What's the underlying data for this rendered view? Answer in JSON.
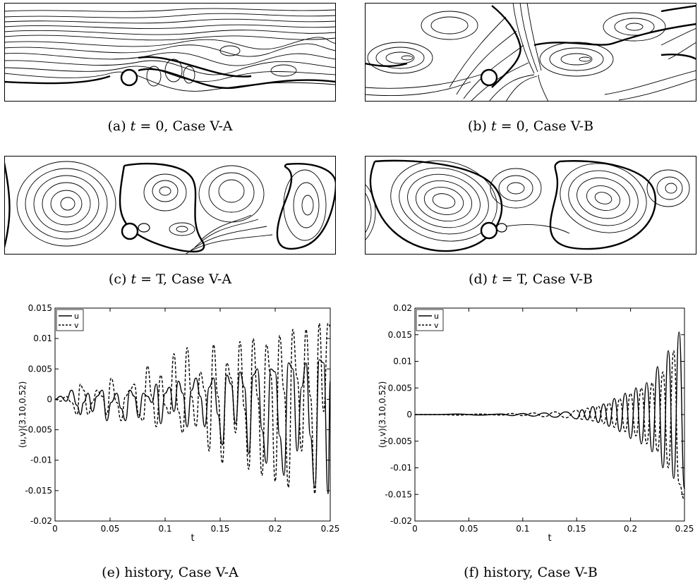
{
  "captions": {
    "a": {
      "label": "(a)",
      "var": "t",
      "eq": "= 0",
      "case": ", Case V-A"
    },
    "b": {
      "label": "(b)",
      "var": "t",
      "eq": "= 0",
      "case": ", Case V-B"
    },
    "c": {
      "label": "(c)",
      "var": "t",
      "eq": "= T",
      "case": ", Case V-A"
    },
    "d": {
      "label": "(d)",
      "var": "t",
      "eq": "= T",
      "case": ", Case V-B"
    },
    "e": "(e) history, Case V-A",
    "f": "(f) history, Case V-B"
  },
  "chart_data": [
    {
      "type": "line",
      "panel": "e",
      "title": "",
      "xlabel": "t",
      "ylabel": "(u,v)(3.10,0.52)",
      "xlim": [
        0,
        0.25
      ],
      "ylim": [
        -0.02,
        0.015
      ],
      "xticks": [
        "0",
        "0.05",
        "0.1",
        "0.15",
        "0.2",
        "0.25"
      ],
      "yticks": [
        "0.015",
        "0.01",
        "0.005",
        "0",
        "-0.005",
        "-0.01",
        "-0.015",
        "-0.02"
      ],
      "legend": {
        "position": "top-left",
        "entries": [
          "u",
          "v"
        ]
      },
      "series": [
        {
          "name": "u",
          "style": "solid",
          "x": [
            0,
            0.005,
            0.01,
            0.015,
            0.02,
            0.023,
            0.026,
            0.03,
            0.034,
            0.038,
            0.043,
            0.047,
            0.051,
            0.056,
            0.06,
            0.064,
            0.068,
            0.072,
            0.076,
            0.08,
            0.084,
            0.088,
            0.092,
            0.096,
            0.1,
            0.104,
            0.108,
            0.112,
            0.116,
            0.12,
            0.124,
            0.128,
            0.132,
            0.136,
            0.14,
            0.144,
            0.148,
            0.152,
            0.156,
            0.16,
            0.164,
            0.168,
            0.172,
            0.176,
            0.18,
            0.184,
            0.188,
            0.192,
            0.196,
            0.2,
            0.204,
            0.208,
            0.212,
            0.216,
            0.22,
            0.224,
            0.228,
            0.232,
            0.236,
            0.24,
            0.244,
            0.248,
            0.25
          ],
          "y": [
            0,
            0.0005,
            -0.0003,
            0.0015,
            -0.001,
            -0.0025,
            -0.0005,
            0.001,
            -0.002,
            0.0005,
            0.0015,
            -0.0035,
            -0.0005,
            0.001,
            -0.0015,
            -0.0035,
            0.0015,
            0.0005,
            -0.003,
            0.001,
            0.0005,
            -0.0005,
            0.0025,
            -0.004,
            0.001,
            0.002,
            -0.002,
            0.003,
            0.001,
            -0.0045,
            0.0015,
            0.0035,
            0.0005,
            -0.0045,
            0.002,
            0.0035,
            -0.0025,
            -0.0075,
            0.004,
            0.0025,
            -0.004,
            0.0045,
            0.002,
            -0.009,
            0.004,
            0.005,
            -0.005,
            -0.0105,
            0.005,
            0.0045,
            -0.006,
            -0.0125,
            0.006,
            0.005,
            -0.0085,
            0.002,
            0.006,
            -0.006,
            -0.0145,
            0.0065,
            0.006,
            -0.0155,
            0.003
          ]
        },
        {
          "name": "v",
          "style": "dashed",
          "x": [
            0,
            0.005,
            0.01,
            0.015,
            0.02,
            0.023,
            0.026,
            0.03,
            0.034,
            0.038,
            0.043,
            0.047,
            0.051,
            0.056,
            0.06,
            0.064,
            0.068,
            0.072,
            0.076,
            0.08,
            0.084,
            0.088,
            0.092,
            0.096,
            0.1,
            0.104,
            0.108,
            0.112,
            0.116,
            0.12,
            0.124,
            0.128,
            0.132,
            0.136,
            0.14,
            0.144,
            0.148,
            0.152,
            0.156,
            0.16,
            0.164,
            0.168,
            0.172,
            0.176,
            0.18,
            0.184,
            0.188,
            0.192,
            0.196,
            0.2,
            0.204,
            0.208,
            0.212,
            0.216,
            0.22,
            0.224,
            0.228,
            0.232,
            0.236,
            0.24,
            0.244,
            0.248,
            0.25
          ],
          "y": [
            0,
            -0.0003,
            0.0005,
            -0.0005,
            -0.0025,
            0.0025,
            0.0015,
            -0.0025,
            -0.0005,
            0.0015,
            0.0005,
            -0.0025,
            0.0035,
            -0.0005,
            -0.0035,
            0.0005,
            0.0015,
            0.0025,
            -0.0025,
            -0.0035,
            0.0055,
            0.0005,
            -0.0045,
            0.004,
            -0.001,
            -0.0025,
            0.0075,
            -0.002,
            -0.0055,
            0.0085,
            0.0005,
            -0.0045,
            0.0045,
            0.0015,
            -0.0085,
            0.009,
            0.0005,
            -0.0105,
            0.006,
            0.0035,
            -0.0055,
            0.0095,
            -0.0015,
            -0.0115,
            0.01,
            0.0005,
            -0.0125,
            0.009,
            0.004,
            -0.0135,
            0.0105,
            0.0015,
            -0.0145,
            0.0115,
            0.0035,
            -0.0085,
            0.0115,
            0.0005,
            -0.0155,
            0.0125,
            -0.002,
            0.0125,
            0.012
          ]
        }
      ]
    },
    {
      "type": "line",
      "panel": "f",
      "title": "",
      "xlabel": "t",
      "ylabel": "(u,v)(3.10,0.52)",
      "xlim": [
        0,
        0.25
      ],
      "ylim": [
        -0.02,
        0.02
      ],
      "xticks": [
        "0",
        "0.05",
        "0.1",
        "0.15",
        "0.2",
        "0.25"
      ],
      "yticks": [
        "0.02",
        "0.015",
        "0.01",
        "0.005",
        "0",
        "-0.005",
        "-0.01",
        "-0.015",
        "-0.02"
      ],
      "legend": {
        "position": "top-left",
        "entries": [
          "u",
          "v"
        ]
      },
      "series": [
        {
          "name": "u",
          "style": "solid",
          "x": [
            0,
            0.02,
            0.04,
            0.06,
            0.08,
            0.09,
            0.1,
            0.11,
            0.12,
            0.13,
            0.14,
            0.15,
            0.155,
            0.16,
            0.165,
            0.17,
            0.175,
            0.18,
            0.185,
            0.19,
            0.195,
            0.2,
            0.205,
            0.21,
            0.215,
            0.22,
            0.225,
            0.23,
            0.235,
            0.24,
            0.245,
            0.25
          ],
          "y": [
            0,
            0,
            0.0001,
            -0.0001,
            0.0001,
            -0.0002,
            0.0002,
            -0.0003,
            0.0003,
            -0.0005,
            0.0005,
            -0.0008,
            0.0009,
            -0.001,
            0.0015,
            -0.0015,
            0.002,
            -0.0022,
            0.003,
            -0.0032,
            0.004,
            -0.0045,
            0.005,
            -0.0055,
            0.006,
            -0.007,
            0.009,
            -0.01,
            0.012,
            -0.012,
            0.0155,
            -0.014
          ]
        },
        {
          "name": "v",
          "style": "dashed",
          "x": [
            0,
            0.02,
            0.04,
            0.06,
            0.08,
            0.09,
            0.1,
            0.11,
            0.12,
            0.13,
            0.14,
            0.15,
            0.155,
            0.16,
            0.165,
            0.17,
            0.175,
            0.18,
            0.185,
            0.19,
            0.195,
            0.2,
            0.205,
            0.21,
            0.215,
            0.22,
            0.225,
            0.23,
            0.235,
            0.24,
            0.245,
            0.25
          ],
          "y": [
            0,
            0,
            -0.0001,
            0.0001,
            -0.0001,
            0.0002,
            -0.0002,
            0.0003,
            -0.0004,
            0.0005,
            -0.0006,
            0.0008,
            -0.0009,
            0.0012,
            -0.0012,
            0.0016,
            -0.0017,
            0.0022,
            -0.0024,
            0.003,
            -0.0032,
            0.004,
            -0.004,
            0.005,
            -0.0055,
            0.006,
            -0.007,
            0.008,
            -0.01,
            0.012,
            -0.013,
            -0.016
          ]
        }
      ]
    }
  ]
}
